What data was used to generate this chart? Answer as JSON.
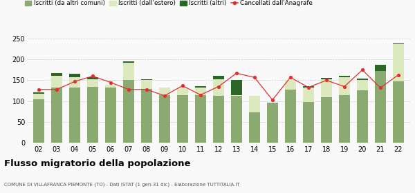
{
  "years": [
    "02",
    "03",
    "04",
    "05",
    "06",
    "07",
    "08",
    "09",
    "10",
    "11",
    "12",
    "13",
    "14",
    "15",
    "16",
    "17",
    "18",
    "19",
    "20",
    "21",
    "22"
  ],
  "v1_altri_comuni": [
    105,
    133,
    133,
    135,
    132,
    150,
    130,
    115,
    115,
    115,
    113,
    113,
    73,
    97,
    128,
    98,
    110,
    115,
    126,
    172,
    148
  ],
  "v2_estero": [
    13,
    28,
    25,
    18,
    8,
    42,
    20,
    18,
    18,
    18,
    40,
    2,
    40,
    0,
    22,
    35,
    42,
    42,
    25,
    0,
    88
  ],
  "v3_altri": [
    3,
    6,
    8,
    5,
    0,
    3,
    3,
    0,
    0,
    3,
    8,
    35,
    0,
    0,
    0,
    3,
    3,
    3,
    3,
    15,
    3
  ],
  "cancellati": [
    128,
    128,
    147,
    160,
    145,
    128,
    128,
    113,
    137,
    115,
    135,
    167,
    157,
    103,
    157,
    133,
    150,
    135,
    175,
    132,
    163
  ],
  "color_altri_comuni": "#8aaa72",
  "color_estero": "#dce9be",
  "color_altri": "#2a6628",
  "color_cancellati": "#e03030",
  "ylim_min": 0,
  "ylim_max": 250,
  "yticks": [
    0,
    50,
    100,
    150,
    200,
    250
  ],
  "bar_width": 0.62,
  "title": "Flusso migratorio della popolazione",
  "subtitle": "COMUNE DI VILLAFRANCA PIEMONTE (TO) - Dati ISTAT (1 gen-31 dic) - Elaborazione TUTTITALIA.IT",
  "legend_labels": [
    "Iscritti (da altri comuni)",
    "Iscritti (dall'estero)",
    "Iscritti (altri)",
    "Cancellati dall'Anagrafe"
  ],
  "bg_color": "#f9f9f9",
  "grid_color": "#cccccc"
}
